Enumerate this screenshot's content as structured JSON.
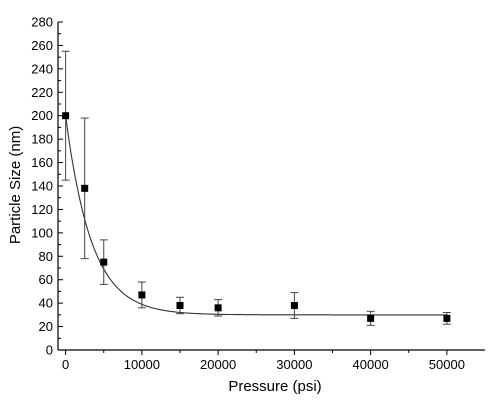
{
  "chart_data": {
    "type": "scatter",
    "xlabel": "Pressure (psi)",
    "ylabel": "Particle Size (nm)",
    "xlim": [
      -1000,
      55000
    ],
    "ylim": [
      0,
      280
    ],
    "x_ticks": [
      0,
      10000,
      20000,
      30000,
      40000,
      50000
    ],
    "y_ticks": [
      0,
      20,
      40,
      60,
      80,
      100,
      120,
      140,
      160,
      180,
      200,
      220,
      240,
      260,
      280
    ],
    "grid": false,
    "legend": "none",
    "marker": "square",
    "marker_color": "#000000",
    "points": [
      {
        "x": 0,
        "y": 200,
        "err": 55
      },
      {
        "x": 2500,
        "y": 138,
        "err": 60
      },
      {
        "x": 5000,
        "y": 75,
        "err": 19
      },
      {
        "x": 10000,
        "y": 47,
        "err": 11
      },
      {
        "x": 15000,
        "y": 38,
        "err": 7
      },
      {
        "x": 20000,
        "y": 36,
        "err": 7
      },
      {
        "x": 30000,
        "y": 38,
        "err": 11
      },
      {
        "x": 40000,
        "y": 27,
        "err": 6
      },
      {
        "x": 50000,
        "y": 27,
        "err": 5
      }
    ],
    "fit": {
      "type": "exponential_decay",
      "color": "#333333",
      "y0": 30,
      "amplitude": 170,
      "decay_psi": 3400
    }
  }
}
